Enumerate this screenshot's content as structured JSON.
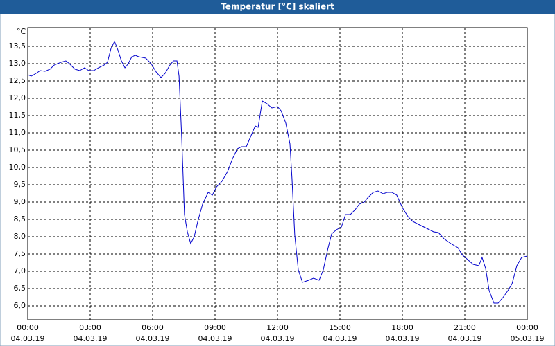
{
  "chart_data": {
    "type": "line",
    "title": "Temperatur [°C] skaliert",
    "y_label": "°C",
    "x": [
      0,
      0.17,
      0.4,
      0.6,
      0.83,
      1.07,
      1.27,
      1.6,
      1.83,
      2.0,
      2.27,
      2.5,
      2.73,
      2.93,
      3.17,
      3.4,
      3.67,
      3.83,
      4.0,
      4.17,
      4.33,
      4.5,
      4.67,
      4.83,
      5.0,
      5.17,
      5.33,
      5.67,
      5.93,
      6.17,
      6.4,
      6.6,
      6.83,
      7.0,
      7.17,
      7.27,
      7.4,
      7.53,
      7.67,
      7.83,
      8.0,
      8.17,
      8.4,
      8.67,
      8.87,
      9.07,
      9.33,
      9.6,
      9.83,
      10.07,
      10.27,
      10.5,
      10.73,
      10.93,
      11.07,
      11.27,
      11.5,
      11.73,
      12.0,
      12.17,
      12.4,
      12.6,
      12.7,
      12.83,
      13.0,
      13.2,
      13.5,
      13.73,
      14.0,
      14.2,
      14.4,
      14.6,
      14.83,
      15.07,
      15.27,
      15.5,
      15.73,
      15.93,
      16.17,
      16.33,
      16.6,
      16.83,
      17.07,
      17.27,
      17.5,
      17.73,
      18.0,
      18.27,
      18.5,
      18.83,
      19.17,
      19.5,
      19.73,
      20.0,
      20.33,
      20.67,
      20.87,
      21.17,
      21.4,
      21.67,
      21.83,
      22.0,
      22.17,
      22.4,
      22.6,
      22.83,
      23.07,
      23.27,
      23.5,
      23.73,
      24.0
    ],
    "series": [
      {
        "name": "Temperatur",
        "color": "#0000cc",
        "values": [
          12.68,
          12.64,
          12.72,
          12.8,
          12.78,
          12.84,
          12.96,
          13.04,
          13.08,
          13.0,
          12.84,
          12.8,
          12.88,
          12.8,
          12.8,
          12.88,
          12.96,
          13.04,
          13.44,
          13.64,
          13.4,
          13.08,
          12.88,
          13.0,
          13.2,
          13.24,
          13.2,
          13.16,
          13.0,
          12.76,
          12.6,
          12.72,
          12.96,
          13.08,
          13.08,
          12.64,
          10.84,
          8.64,
          8.14,
          7.8,
          8.0,
          8.44,
          8.94,
          9.28,
          9.2,
          9.44,
          9.6,
          9.88,
          10.24,
          10.54,
          10.6,
          10.6,
          10.92,
          11.2,
          11.16,
          11.92,
          11.84,
          11.72,
          11.76,
          11.64,
          11.28,
          10.68,
          9.64,
          8.04,
          7.04,
          6.68,
          6.74,
          6.8,
          6.74,
          7.04,
          7.6,
          8.08,
          8.2,
          8.28,
          8.64,
          8.64,
          8.78,
          8.94,
          9.0,
          9.12,
          9.28,
          9.32,
          9.24,
          9.28,
          9.28,
          9.2,
          8.84,
          8.58,
          8.44,
          8.34,
          8.24,
          8.14,
          8.12,
          7.94,
          7.8,
          7.68,
          7.48,
          7.32,
          7.2,
          7.16,
          7.4,
          7.08,
          6.44,
          6.08,
          6.08,
          6.24,
          6.44,
          6.64,
          7.16,
          7.4,
          7.44
        ]
      }
    ],
    "xlim": [
      0,
      24
    ],
    "xticks": [
      {
        "value": 0,
        "label": "00:00"
      },
      {
        "value": 3,
        "label": "03:00"
      },
      {
        "value": 6,
        "label": "06:00"
      },
      {
        "value": 9,
        "label": "09:00"
      },
      {
        "value": 12,
        "label": "12:00"
      },
      {
        "value": 15,
        "label": "15:00"
      },
      {
        "value": 18,
        "label": "18:00"
      },
      {
        "value": 21,
        "label": "21:00"
      },
      {
        "value": 24,
        "label": "00:00"
      }
    ],
    "xtick_dates": [
      "04.03.19",
      "04.03.19",
      "04.03.19",
      "04.03.19",
      "04.03.19",
      "04.03.19",
      "04.03.19",
      "04.03.19",
      "05.03.19"
    ],
    "ylim": [
      5.6,
      14.04
    ],
    "yticks": [
      {
        "value": 6,
        "label": "6,0"
      },
      {
        "value": 6.5,
        "label": "6,5"
      },
      {
        "value": 7,
        "label": "7,0"
      },
      {
        "value": 7.5,
        "label": "7,5"
      },
      {
        "value": 8,
        "label": "8,0"
      },
      {
        "value": 8.5,
        "label": "8,5"
      },
      {
        "value": 9,
        "label": "9,0"
      },
      {
        "value": 9.5,
        "label": "9,5"
      },
      {
        "value": 10,
        "label": "10,0"
      },
      {
        "value": 10.5,
        "label": "10,5"
      },
      {
        "value": 11,
        "label": "11,0"
      },
      {
        "value": 11.5,
        "label": "11,5"
      },
      {
        "value": 12,
        "label": "12,0"
      },
      {
        "value": 12.5,
        "label": "12,5"
      },
      {
        "value": 13,
        "label": "13,0"
      },
      {
        "value": 13.5,
        "label": "13,5"
      }
    ],
    "grid": true
  }
}
